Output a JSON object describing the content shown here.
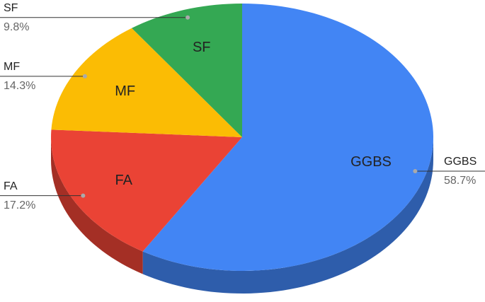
{
  "chart_data": {
    "type": "pie3d",
    "categories": [
      "GGBS",
      "FA",
      "MF",
      "SF"
    ],
    "values": [
      58.7,
      17.2,
      14.3,
      9.8
    ],
    "value_labels": [
      "58.7%",
      "17.2%",
      "14.3%",
      "9.8%"
    ],
    "colors": [
      "#4285f4",
      "#ea4335",
      "#fbbc04",
      "#34a853"
    ]
  }
}
